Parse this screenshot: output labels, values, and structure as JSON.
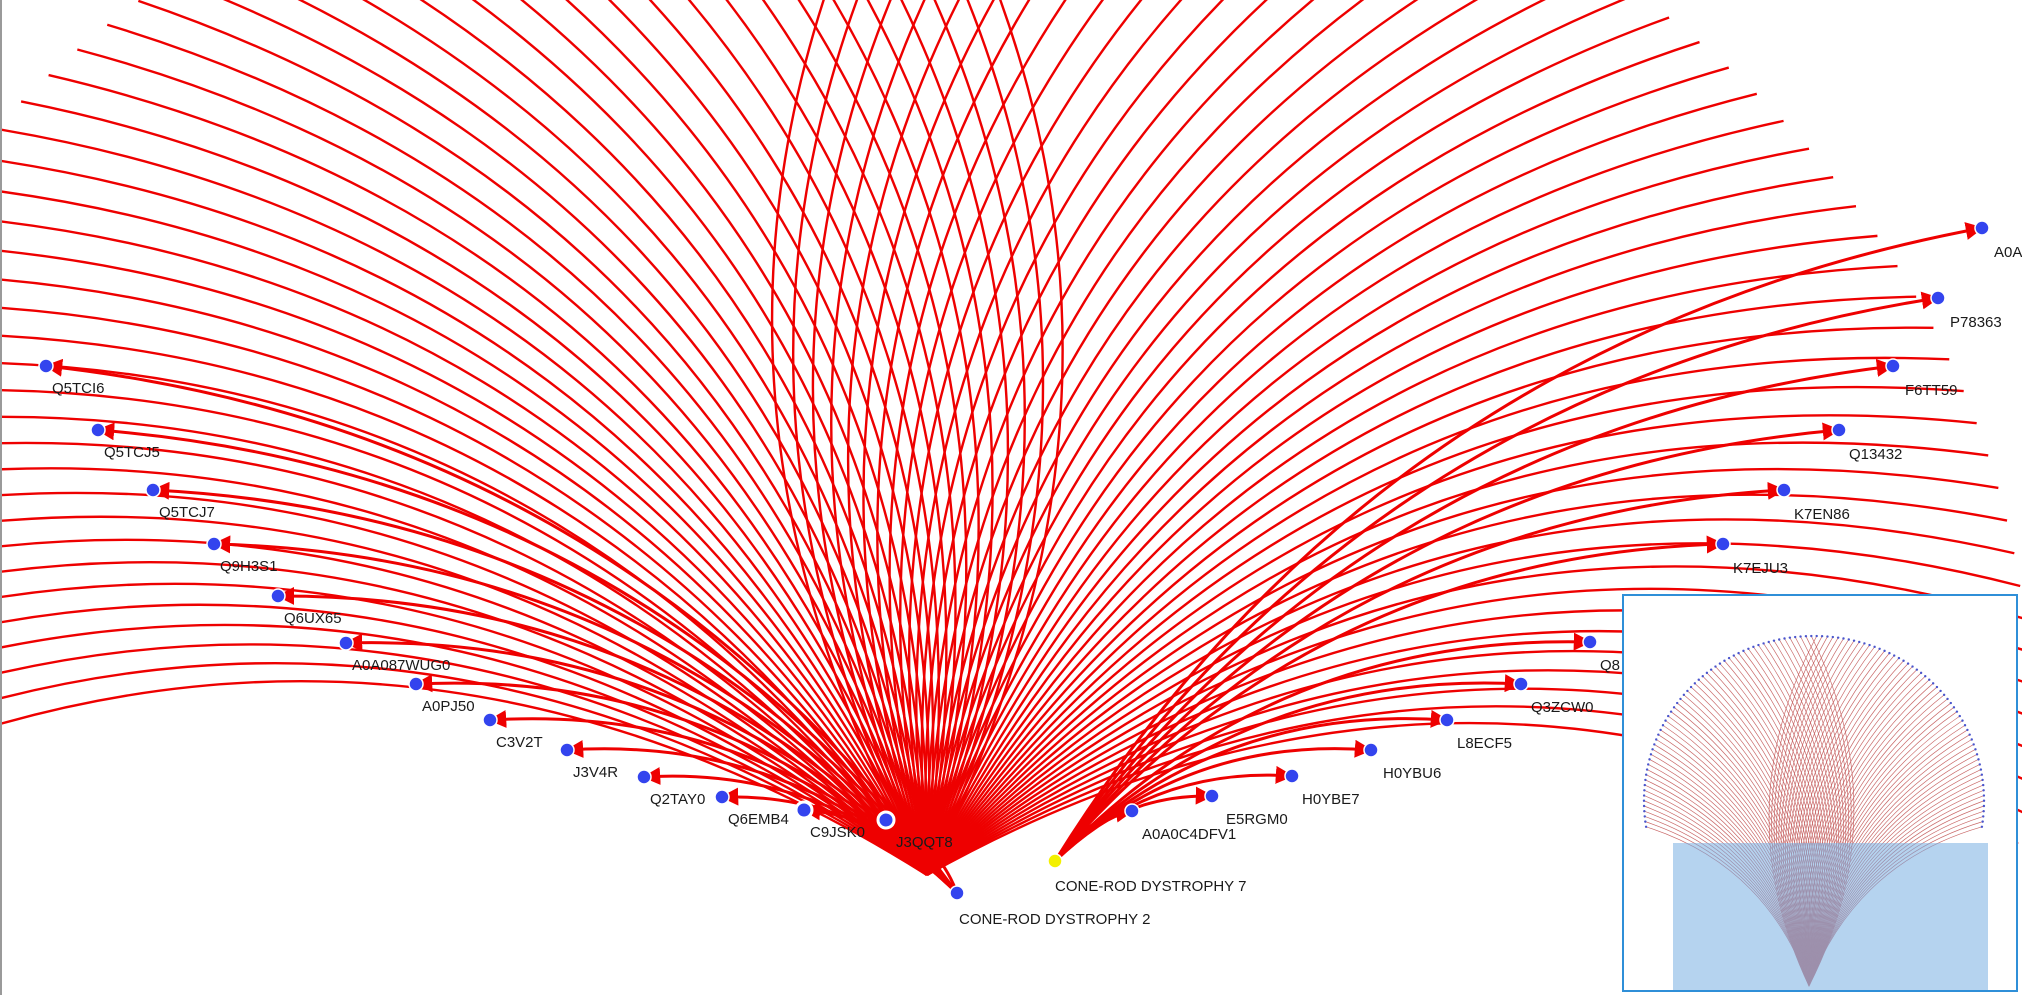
{
  "graph": {
    "edge_color": "#ee0000",
    "node_color": "#3344ee",
    "source_color": "#f3f000",
    "sources": [
      {
        "id": "src-7",
        "label": "CONE-ROD DYSTROPHY 7"
      },
      {
        "id": "src-2",
        "label": "CONE-ROD DYSTROPHY 2"
      }
    ],
    "nodes": [
      {
        "label": "Q5TCI6"
      },
      {
        "label": "Q5TCJ5"
      },
      {
        "label": "Q5TCJ7"
      },
      {
        "label": "Q9H3S1"
      },
      {
        "label": "Q6UX65"
      },
      {
        "label": "A0A087WUG0"
      },
      {
        "label": "A0PJ50"
      },
      {
        "label": "C3V2T"
      },
      {
        "label": "J3V4R"
      },
      {
        "label": "Q2TAY0"
      },
      {
        "label": "Q6EMB4"
      },
      {
        "label": "C9JSK0"
      },
      {
        "label": "J3QQT8"
      },
      {
        "label": "A0A0C4DFV1"
      },
      {
        "label": "E5RGM0"
      },
      {
        "label": "H0YBE7"
      },
      {
        "label": "H0YBU6"
      },
      {
        "label": "L8ECF5"
      },
      {
        "label": "Q3ZCW0"
      },
      {
        "label": "Q8"
      },
      {
        "label": "K7EJU3"
      },
      {
        "label": "K7EN86"
      },
      {
        "label": "Q13432"
      },
      {
        "label": "F6TT59"
      },
      {
        "label": "P78363"
      },
      {
        "label": "A0A"
      }
    ]
  },
  "minimap": {
    "border_color": "#2f8fd8",
    "viewport_color": "#78afe1"
  }
}
